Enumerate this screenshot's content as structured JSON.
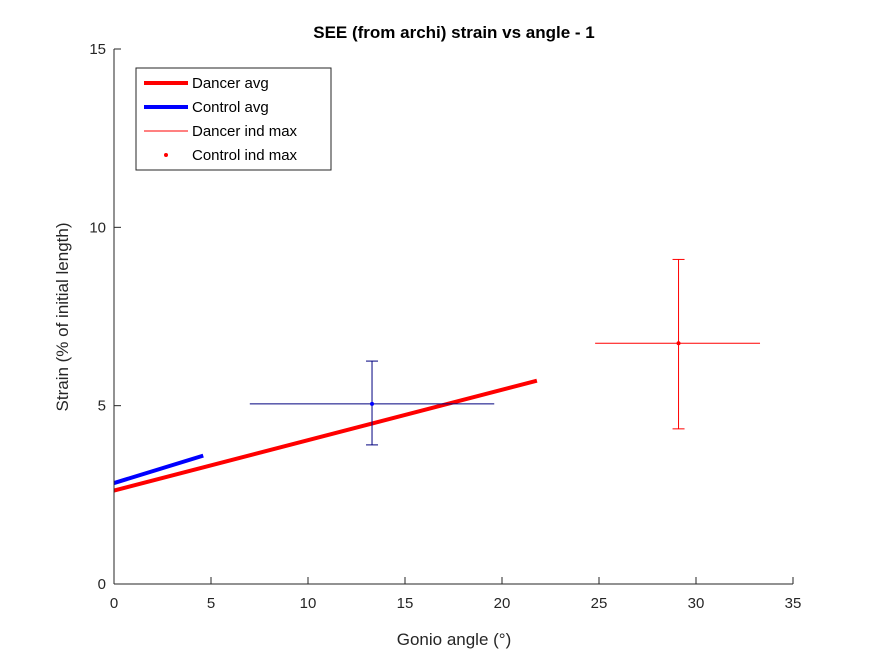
{
  "chart_data": {
    "type": "line",
    "title": "SEE (from archi) strain vs angle - 1",
    "xlabel": "Gonio angle (°)",
    "ylabel": "Strain (% of initial length)",
    "xlim": [
      0,
      35
    ],
    "ylim": [
      0,
      15
    ],
    "xticks": [
      0,
      5,
      10,
      15,
      20,
      25,
      30,
      35
    ],
    "yticks": [
      0,
      5,
      10,
      15
    ],
    "xtick_labels": [
      "0",
      "5",
      "10",
      "15",
      "20",
      "25",
      "30",
      "35"
    ],
    "ytick_labels": [
      "0",
      "5",
      "10",
      "15"
    ],
    "grid": false,
    "legend_position": "top-left",
    "series": [
      {
        "name": "Dancer avg",
        "kind": "line",
        "color": "#ff0000",
        "x": [
          0,
          21.8
        ],
        "y": [
          2.62,
          5.7
        ]
      },
      {
        "name": "Control avg",
        "kind": "line",
        "color": "#0000ff",
        "x": [
          0,
          4.6
        ],
        "y": [
          2.83,
          3.6
        ]
      },
      {
        "name": "Dancer ind max",
        "kind": "errorbar",
        "color": "#ff0000",
        "x": 29.1,
        "y": 6.75,
        "x_err": [
          24.8,
          33.3
        ],
        "y_err": [
          4.35,
          9.1
        ]
      },
      {
        "name": "Control ind max",
        "kind": "errorbar",
        "color": "#00007f",
        "marker_color": "#0000ff",
        "x": 13.3,
        "y": 5.05,
        "x_err": [
          7.0,
          19.6
        ],
        "y_err": [
          3.9,
          6.25
        ]
      }
    ],
    "legend": [
      {
        "label": "Dancer avg",
        "style": "thick-line",
        "color": "#ff0000"
      },
      {
        "label": "Control avg",
        "style": "thick-line",
        "color": "#0000ff"
      },
      {
        "label": "Dancer ind max",
        "style": "thin-line",
        "color": "#ff0000"
      },
      {
        "label": "Control ind max",
        "style": "dot",
        "color": "#ff0000"
      }
    ]
  }
}
